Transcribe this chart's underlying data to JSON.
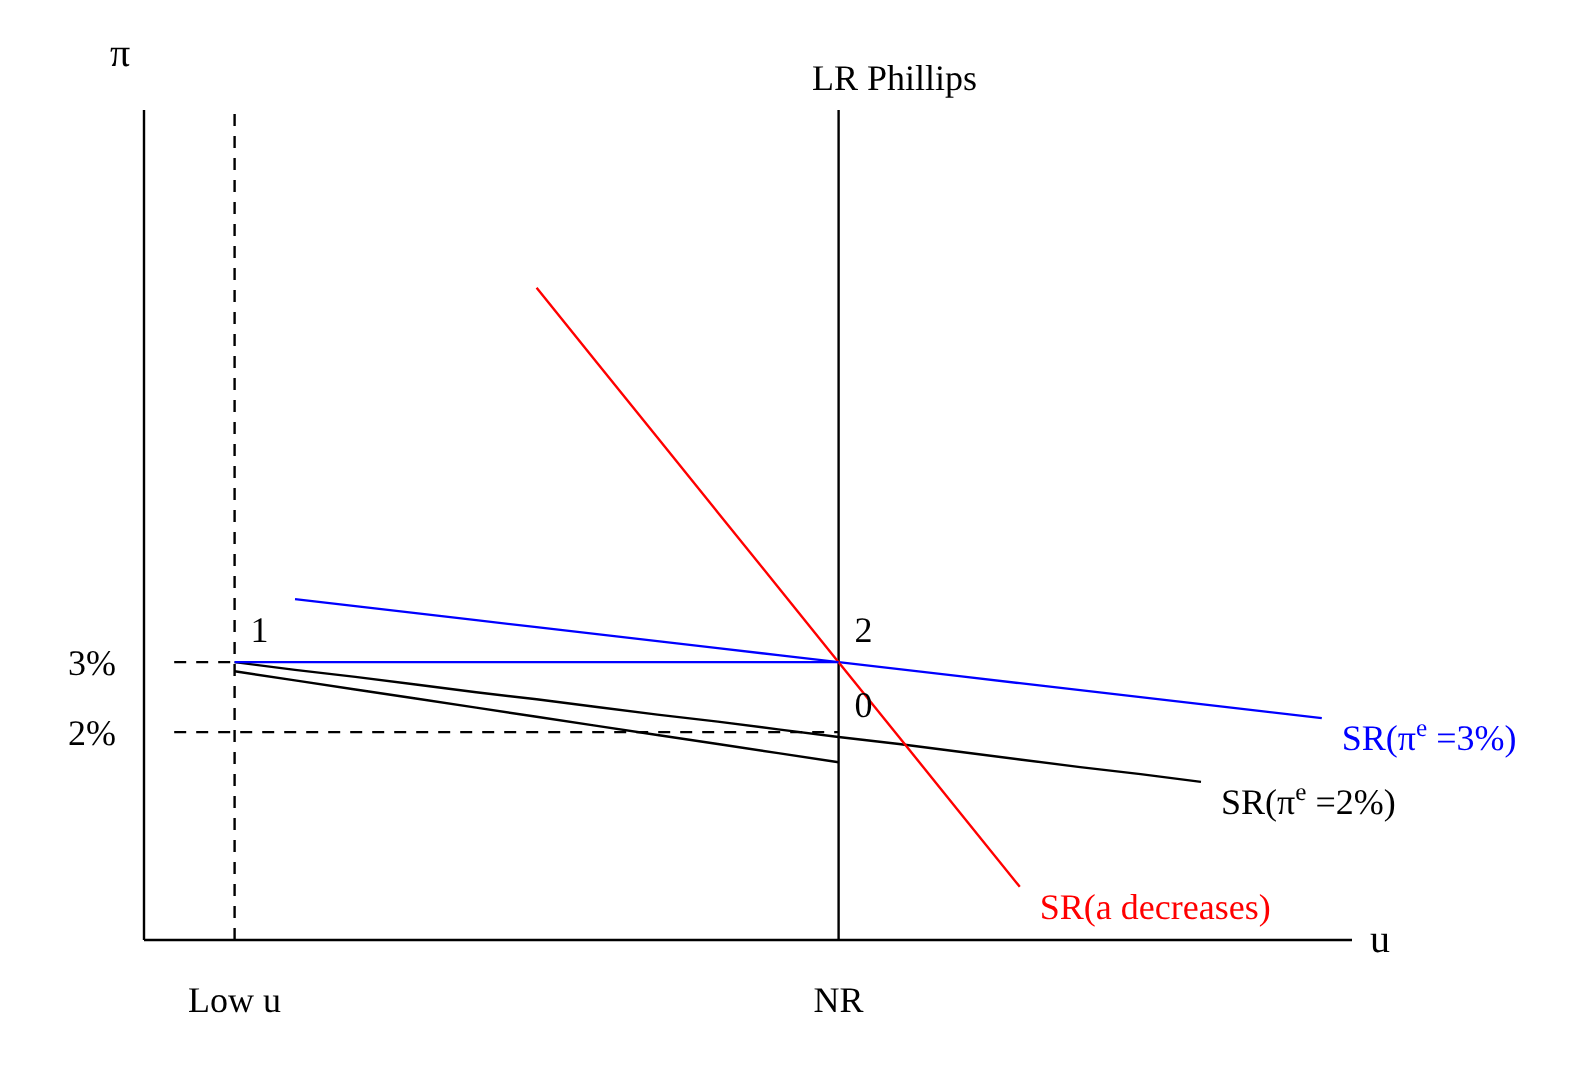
{
  "chart_data": {
    "type": "line",
    "ylabel": "π",
    "xlabel": "u",
    "categories": [
      null,
      "Low u",
      null,
      null,
      null,
      null,
      null,
      null,
      null,
      null,
      null,
      "NR",
      null,
      null,
      null,
      null,
      null,
      null,
      null,
      null
    ],
    "ylim": [
      -0.97,
      10.89
    ],
    "yticks": [
      {
        "value": 2,
        "label": "2%"
      },
      {
        "value": 3,
        "label": "3%"
      }
    ],
    "grid": false,
    "marker": "none",
    "series": [
      {
        "name": "SR(π$^{e}$ =3%)",
        "color": "#0000ff",
        "values": [
          null,
          null,
          3.9,
          3.8,
          3.7,
          3.6,
          3.5,
          3.4,
          3.3,
          3.2,
          3.1,
          3,
          2.9,
          2.8,
          2.7,
          2.6,
          2.5,
          2.4,
          2.3,
          2.2
        ]
      },
      {
        "name": "SR(π$^{e}$ =2%)",
        "color": "#000000",
        "values": [
          null,
          3,
          2.89,
          2.79,
          2.68,
          2.57,
          2.47,
          2.36,
          2.25,
          2.15,
          2.04,
          1.93,
          1.83,
          1.72,
          1.61,
          1.5,
          1.4,
          1.29,
          null,
          null
        ]
      },
      {
        "name": "SR(a decreases)",
        "color": "#ff0000",
        "values": [
          null,
          null,
          null,
          null,
          null,
          null,
          8.35,
          7.28,
          6.21,
          5.14,
          4.07,
          3,
          1.93,
          0.86,
          -0.21,
          null,
          null,
          null,
          null,
          null
        ]
      },
      {
        "color": "#0000ff",
        "values": [
          null,
          3,
          3,
          3,
          3,
          3,
          3,
          3,
          3,
          3,
          3,
          3,
          null,
          null,
          null,
          null,
          null,
          null,
          null,
          null
        ]
      },
      {
        "color": "#000000",
        "values": [
          null,
          2.87,
          2.74,
          2.61,
          2.48,
          2.35,
          2.22,
          2.09,
          1.96,
          1.83,
          1.7,
          1.57,
          null,
          null,
          null,
          null,
          null,
          null,
          null,
          null
        ]
      },
      {
        "color": "#000000",
        "line_style": "dashed",
        "values": [
          3,
          3,
          null,
          null,
          null,
          null,
          null,
          null,
          null,
          null,
          null,
          null,
          null,
          null,
          null,
          null,
          null,
          null,
          null,
          null
        ]
      },
      {
        "color": "#000000",
        "line_style": "dashed",
        "values": [
          2,
          2,
          2,
          2,
          2,
          2,
          2,
          2,
          2,
          2,
          2,
          2,
          null,
          null,
          null,
          null,
          null,
          null,
          null,
          null
        ]
      }
    ],
    "annotations": [
      {
        "text": "1",
        "x": "Low u",
        "y": 3
      },
      {
        "text": "2",
        "x": "NR",
        "y": 3
      },
      {
        "text": "0",
        "x": "NR",
        "y": 1.93
      }
    ],
    "ref_lines": [
      {
        "axis": "x",
        "value": "NR",
        "label": "LR Phillips",
        "color": "#000000"
      },
      {
        "axis": "x",
        "value": "Low u",
        "color": "#000000",
        "line_style": "dashed"
      }
    ]
  }
}
